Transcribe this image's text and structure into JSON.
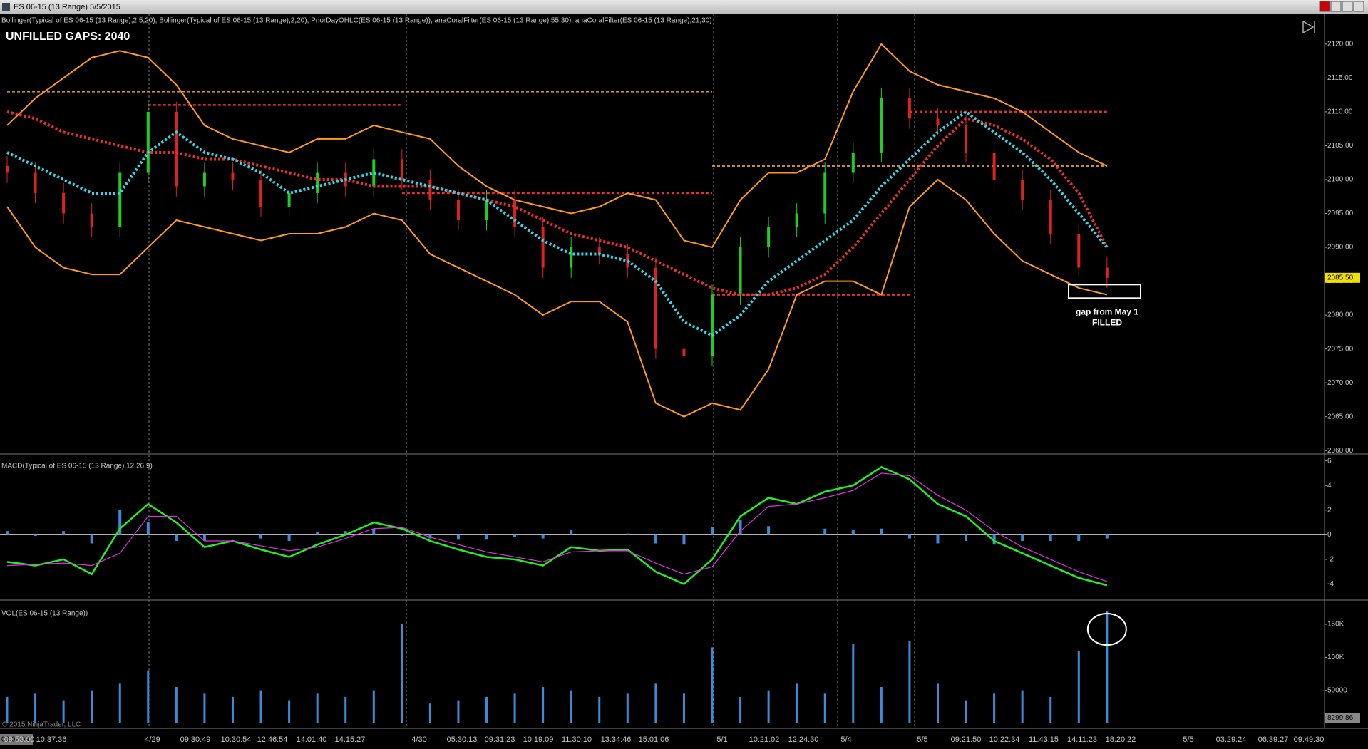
{
  "window": {
    "title": "ES 06-15 (13 Range)  5/5/2015"
  },
  "chart_data": [
    {
      "type": "candlestick",
      "label": "Bollinger(Typical of ES 06-15 (13 Range),2.5,20), Bollinger(Typical of ES 06-15 (13 Range),2,20), PriorDayOHLC(ES 06-15 (13 Range)), anaCoralFilter(ES 06-15 (13 Range),55,30), anaCoralFilter(ES 06-15 (13 Range),21,30)",
      "annotation": "UNFILLED GAPS: 2040",
      "up_color": "#22cc22",
      "down_color": "#dd2222",
      "open": [
        2102,
        2101,
        2098,
        2095,
        2093,
        2101,
        2110,
        2099,
        2101,
        2100,
        2096,
        2098,
        2101,
        2099,
        2103,
        2100,
        2097,
        2094,
        2097,
        2093,
        2087,
        2090,
        2089,
        2087,
        2075,
        2074,
        2083,
        2090,
        2093,
        2095,
        2101,
        2104,
        2112,
        2109,
        2108,
        2104,
        2100,
        2097,
        2092,
        2087
      ],
      "high": [
        2103.5,
        2102.5,
        2099.5,
        2096.5,
        2102.5,
        2111.5,
        2111.5,
        2102.5,
        2102.5,
        2101.5,
        2099.5,
        2102.5,
        2102.5,
        2104.5,
        2104.5,
        2101.5,
        2098.5,
        2098.5,
        2098.5,
        2094.5,
        2091.5,
        2091.5,
        2090.5,
        2088.5,
        2076.5,
        2084.5,
        2091.5,
        2094.5,
        2096.5,
        2102.5,
        2105.5,
        2113.5,
        2113.5,
        2110.5,
        2109.5,
        2105.5,
        2101.5,
        2098.5,
        2093.5,
        2088.5
      ],
      "low": [
        2099.5,
        2096.5,
        2093.5,
        2091.5,
        2091.5,
        2099.5,
        2097.5,
        2097.5,
        2098.5,
        2094.5,
        2094.5,
        2096.5,
        2097.5,
        2097.5,
        2098.5,
        2095.5,
        2092.5,
        2092.5,
        2091.5,
        2085.5,
        2085.5,
        2087.5,
        2085.5,
        2073.5,
        2072.5,
        2072.5,
        2081.5,
        2088.5,
        2091.5,
        2093.5,
        2099.5,
        2102.5,
        2107.5,
        2106.5,
        2102.5,
        2098.5,
        2095.5,
        2090.5,
        2085.5,
        2084
      ],
      "close": [
        2101,
        2098,
        2095,
        2093,
        2101,
        2110,
        2099,
        2101,
        2100,
        2096,
        2098,
        2101,
        2099,
        2103,
        2100,
        2097,
        2094,
        2097,
        2093,
        2087,
        2090,
        2089,
        2087,
        2075,
        2074,
        2083,
        2090,
        2093,
        2095,
        2101,
        2104,
        2112,
        2109,
        2108,
        2104,
        2100,
        2097,
        2092,
        2087,
        2085.5
      ],
      "series": [
        {
          "color": "#ff9a1f",
          "style": "solid",
          "values": [
            2108,
            2112,
            2115,
            2118,
            2119,
            2118,
            2114,
            2108,
            2106,
            2105,
            2104,
            2106,
            2106,
            2108,
            2107,
            2106,
            2102,
            2099,
            2097,
            2096,
            2095,
            2096,
            2098,
            2097,
            2091,
            2090,
            2097,
            2101,
            2101,
            2103,
            2113,
            2120,
            2116,
            2114,
            2113,
            2112,
            2110,
            2107,
            2104,
            2102
          ]
        },
        {
          "color": "#ff9a1f",
          "style": "solid",
          "values": [
            2096,
            2090,
            2087,
            2086,
            2086,
            2090,
            2094,
            2093,
            2092,
            2091,
            2092,
            2092,
            2093,
            2095,
            2094,
            2089,
            2087,
            2085,
            2083,
            2080,
            2082,
            2082,
            2079,
            2067,
            2065,
            2067,
            2066,
            2072,
            2083,
            2085,
            2085,
            2083,
            2096,
            2100,
            2097,
            2092,
            2088,
            2086,
            2084,
            2083
          ]
        },
        {
          "color": "#e83030",
          "style": "dotted",
          "values": [
            2110,
            2109,
            2107,
            2106,
            2105,
            2104,
            2104,
            2103,
            2103,
            2102,
            2101,
            2100,
            2100,
            2099,
            2099,
            2099,
            2098,
            2097,
            2096,
            2094,
            2092,
            2091,
            2090,
            2088,
            2086,
            2084,
            2083,
            2083,
            2084,
            2086,
            2090,
            2095,
            2100,
            2105,
            2109,
            2108,
            2106,
            2103,
            2098,
            2090
          ]
        },
        {
          "color": "#33d6e8",
          "style": "dotted",
          "values": [
            2104,
            2102,
            2100,
            2098,
            2098,
            2104,
            2107,
            2104,
            2103,
            2101,
            2098,
            2099,
            2100,
            2101,
            2100,
            2099,
            2098,
            2097,
            2094,
            2091,
            2089,
            2089,
            2088,
            2085,
            2079,
            2077,
            2080,
            2085,
            2088,
            2091,
            2094,
            2099,
            2103,
            2107,
            2110,
            2107,
            2104,
            2100,
            2095,
            2090
          ]
        }
      ],
      "levels": [
        {
          "value": 2111,
          "from": 5,
          "to": 14,
          "color": "#e03030"
        },
        {
          "value": 2098,
          "from": 14,
          "to": 25,
          "color": "#e03030"
        },
        {
          "value": 2083,
          "from": 25,
          "to": 32,
          "color": "#e03030"
        },
        {
          "value": 2110,
          "from": 32,
          "to": 39,
          "color": "#e03030"
        },
        {
          "value": 2113,
          "from": 0,
          "to": 25,
          "color": "#c89020"
        },
        {
          "value": 2102,
          "from": 25,
          "to": 39,
          "color": "#c89020"
        }
      ],
      "gap_box": {
        "low": 2082.5,
        "high": 2084.5
      },
      "gap_label": [
        "gap from May 1",
        "FILLED"
      ],
      "last_price": {
        "value": 2085.5,
        "label": "2085.50"
      },
      "ylim": [
        2059.5,
        2124.4
      ],
      "yticks": [
        {
          "value": 2060,
          "label": "2060.00"
        },
        {
          "value": 2065,
          "label": "2065.00"
        },
        {
          "value": 2070,
          "label": "2070.00"
        },
        {
          "value": 2075,
          "label": "2075.00"
        },
        {
          "value": 2080,
          "label": "2080.00"
        },
        {
          "value": 2085,
          "label": "2085.00"
        },
        {
          "value": 2090,
          "label": "2090.00"
        },
        {
          "value": 2095,
          "label": "2095.00"
        },
        {
          "value": 2100,
          "label": "2100.00"
        },
        {
          "value": 2105,
          "label": "2105.00"
        },
        {
          "value": 2110,
          "label": "2110.00"
        },
        {
          "value": 2115,
          "label": "2115.00"
        },
        {
          "value": 2120,
          "label": "2120.00"
        }
      ]
    },
    {
      "type": "macd",
      "label": "MACD(Typical of ES 06-15 (13 Range),12,26,9)",
      "series": [
        {
          "color": "#22ee22",
          "values": [
            -2.2,
            -2.5,
            -2.0,
            -3.2,
            0.5,
            2.5,
            1.0,
            -1.0,
            -0.5,
            -1.2,
            -1.8,
            -0.8,
            0.0,
            1.0,
            0.5,
            -0.5,
            -1.2,
            -1.8,
            -2.0,
            -2.5,
            -1.0,
            -1.3,
            -1.2,
            -3.0,
            -4.0,
            -2.0,
            1.5,
            3.0,
            2.5,
            3.5,
            4.0,
            5.5,
            4.5,
            2.5,
            1.5,
            -0.5,
            -1.5,
            -2.5,
            -3.5,
            -4.1
          ]
        },
        {
          "color": "#dd33dd",
          "values": [
            -2.5,
            -2.4,
            -2.3,
            -2.5,
            -1.5,
            1.5,
            1.5,
            -0.5,
            -0.5,
            -0.9,
            -1.3,
            -1.0,
            -0.3,
            0.5,
            0.6,
            -0.2,
            -0.8,
            -1.4,
            -1.8,
            -2.2,
            -1.4,
            -1.3,
            -1.3,
            -2.3,
            -3.2,
            -2.6,
            0.3,
            2.3,
            2.5,
            3.0,
            3.6,
            5.0,
            4.8,
            3.2,
            2.0,
            0.3,
            -1.0,
            -2.0,
            -3.0,
            -3.8
          ]
        }
      ],
      "histogram": {
        "color": "#3b8bd9",
        "values": [
          0.3,
          -0.1,
          0.3,
          -0.7,
          2.0,
          1.0,
          -0.5,
          -0.5,
          0.0,
          -0.3,
          -0.5,
          0.2,
          0.3,
          0.5,
          -0.1,
          -0.3,
          -0.4,
          -0.4,
          -0.2,
          -0.3,
          0.4,
          0.0,
          0.1,
          -0.7,
          -0.8,
          0.6,
          1.2,
          0.7,
          0.0,
          0.5,
          0.4,
          0.5,
          -0.3,
          -0.7,
          -0.5,
          -0.8,
          -0.5,
          -0.5,
          -0.5,
          -0.3
        ]
      },
      "ylim": [
        -5.3,
        6.5
      ],
      "yticks": [
        -4,
        -2,
        0,
        2,
        4,
        6
      ]
    },
    {
      "type": "bar",
      "label": "VOL(ES 06-15 (13 Range))",
      "color": "#3b8bd9",
      "values": [
        40000,
        45000,
        35000,
        50000,
        60000,
        80000,
        55000,
        45000,
        40000,
        50000,
        35000,
        45000,
        40000,
        50000,
        150000,
        30000,
        35000,
        40000,
        45000,
        55000,
        50000,
        40000,
        45000,
        60000,
        45000,
        115000,
        40000,
        50000,
        60000,
        45000,
        120000,
        55000,
        125000,
        60000,
        35000,
        45000,
        50000,
        40000,
        110000,
        170000
      ],
      "last_value": 8299.86,
      "ylim": [
        -7550,
        185600
      ],
      "yticks": [
        50000,
        {
          "value": 100000,
          "label": "100K"
        },
        {
          "value": 150000,
          "label": "150K"
        }
      ]
    }
  ],
  "time_axis": {
    "labels": [
      "09:53:00",
      "10:37:36",
      "4/29",
      "09:30:49",
      "10:30:54",
      "12:46:54",
      "14:01:40",
      "14:15:27",
      "4/30",
      "05:30:13",
      "09:31:23",
      "10:19:09",
      "11:30:10",
      "13:34:46",
      "15:01:06",
      "5/1",
      "10:21:02",
      "12:24:30",
      "5/4",
      "5/5",
      "09:21:50",
      "10:22:34",
      "11:43:15",
      "14:11:23",
      "18:20:22",
      "5/5",
      "03:29:24",
      "06:39:27",
      "09:49:30"
    ],
    "cursor_time": "03:08:09"
  },
  "copyright": "© 2015 NinjaTrader, LLC"
}
